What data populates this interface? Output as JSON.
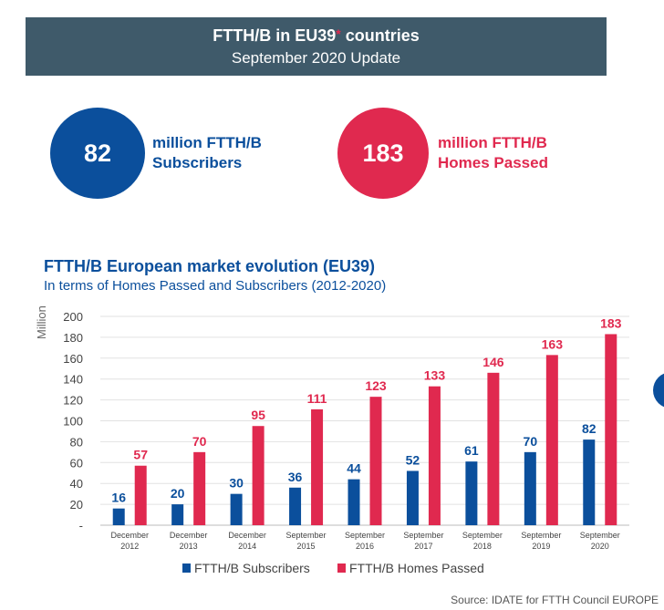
{
  "banner": {
    "title": "FTTH/B in EU39",
    "title_mark": "*",
    "title_suffix": " countries",
    "subtitle": "September 2020 Update"
  },
  "kpis": [
    {
      "value": "82",
      "line1": "million FTTH/B",
      "line2": "Subscribers",
      "color": "#0b4f9c"
    },
    {
      "value": "183",
      "line1": "million FTTH/B",
      "line2": "Homes Passed",
      "color": "#e0294f"
    }
  ],
  "chart_data": {
    "type": "bar",
    "title": "FTTH/B European market evolution (EU39)",
    "subtitle": "In terms of Homes Passed and Subscribers (2012-2020)",
    "ylabel": "Million",
    "ylim": [
      0,
      200
    ],
    "yticks": [
      "-",
      "20",
      "40",
      "60",
      "80",
      "100",
      "120",
      "140",
      "160",
      "180",
      "200"
    ],
    "grid": true,
    "legend_position": "bottom",
    "categories": [
      [
        "December",
        "2012"
      ],
      [
        "December",
        "2013"
      ],
      [
        "December",
        "2014"
      ],
      [
        "September",
        "2015"
      ],
      [
        "September",
        "2016"
      ],
      [
        "September",
        "2017"
      ],
      [
        "September",
        "2018"
      ],
      [
        "September",
        "2019"
      ],
      [
        "September",
        "2020"
      ]
    ],
    "series": [
      {
        "name": "FTTH/B Subscribers",
        "color": "#0b4f9c",
        "values": [
          16,
          20,
          30,
          36,
          44,
          52,
          61,
          70,
          82
        ]
      },
      {
        "name": "FTTH/B Homes Passed",
        "color": "#e0294f",
        "values": [
          57,
          70,
          95,
          111,
          123,
          133,
          146,
          163,
          183
        ]
      }
    ]
  },
  "source": "Source: IDATE for FTTH Council EUROPE"
}
